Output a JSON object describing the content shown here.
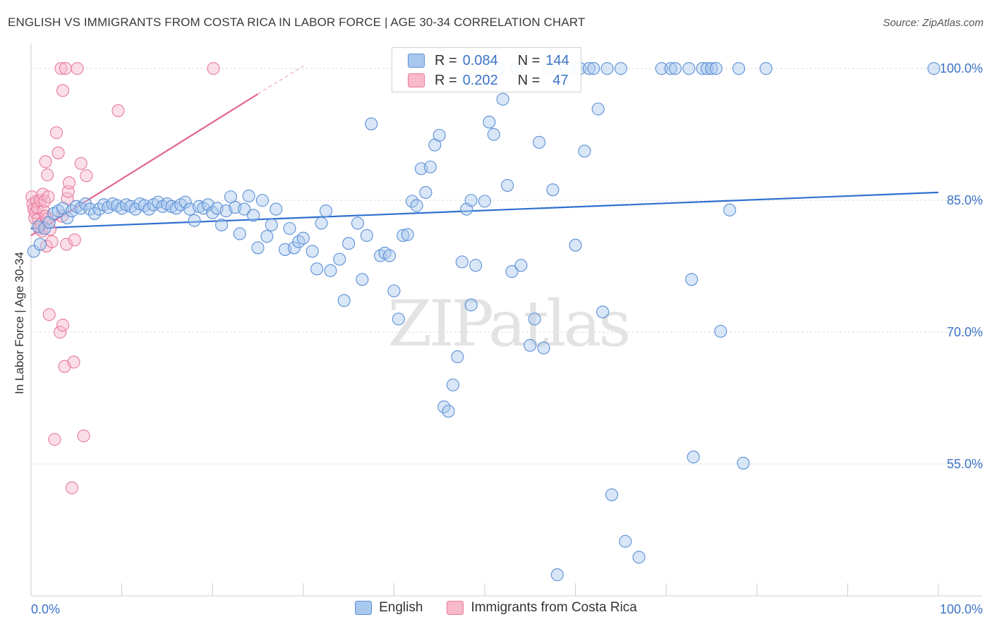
{
  "chart_data": {
    "type": "scatter",
    "title": "ENGLISH VS IMMIGRANTS FROM COSTA RICA IN LABOR FORCE | AGE 30-34 CORRELATION CHART",
    "source": "Source: ZipAtlas.com",
    "xlabel": "",
    "ylabel": "In Labor Force | Age 30-34",
    "xlim": [
      0,
      100
    ],
    "ylim": [
      40,
      102.5
    ],
    "x_tick_labels": [
      "0.0%",
      "100.0%"
    ],
    "y_ticks": [
      55,
      70,
      85,
      100
    ],
    "y_tick_labels": [
      "55.0%",
      "70.0%",
      "85.0%",
      "100.0%"
    ],
    "watermark": "ZIPatlas",
    "colors": {
      "english_fill": "#a9c8ee",
      "english_stroke": "#5b8fd6",
      "english_line": "#2f6fd0",
      "costa_fill": "#f7b9cb",
      "costa_stroke": "#e8799b",
      "costa_line": "#e06592",
      "tick_label": "#3b73c6",
      "grid": "#d9d9d9"
    },
    "legend": [
      {
        "r_label": "R =",
        "r_value": "0.084",
        "n_label": "N =",
        "n_value": "144"
      },
      {
        "r_label": "R =",
        "r_value": "0.202",
        "n_label": "N =",
        "n_value": "47"
      }
    ],
    "series": [
      {
        "name": "English",
        "trend": {
          "x": [
            0,
            100
          ],
          "y": [
            81.8,
            85.9
          ]
        },
        "points": [
          [
            0.3,
            79.2
          ],
          [
            0.8,
            82.0
          ],
          [
            1.0,
            80.0
          ],
          [
            1.5,
            81.8
          ],
          [
            2.0,
            82.5
          ],
          [
            2.5,
            83.5
          ],
          [
            3.0,
            83.8
          ],
          [
            3.5,
            84.1
          ],
          [
            4.0,
            83.0
          ],
          [
            4.5,
            83.8
          ],
          [
            5.0,
            84.3
          ],
          [
            5.5,
            84.1
          ],
          [
            6.0,
            84.6
          ],
          [
            6.5,
            84.0
          ],
          [
            7.0,
            83.5
          ],
          [
            7.5,
            84.0
          ],
          [
            8.0,
            84.5
          ],
          [
            8.5,
            84.2
          ],
          [
            9.0,
            84.6
          ],
          [
            9.5,
            84.4
          ],
          [
            10.0,
            84.1
          ],
          [
            10.5,
            84.5
          ],
          [
            11.0,
            84.3
          ],
          [
            11.5,
            84.0
          ],
          [
            12.0,
            84.6
          ],
          [
            12.5,
            84.4
          ],
          [
            13.0,
            84.0
          ],
          [
            13.5,
            84.5
          ],
          [
            14.0,
            84.8
          ],
          [
            14.5,
            84.3
          ],
          [
            15.0,
            84.6
          ],
          [
            15.5,
            84.3
          ],
          [
            16.0,
            84.1
          ],
          [
            16.5,
            84.5
          ],
          [
            17.0,
            84.8
          ],
          [
            17.5,
            84.0
          ],
          [
            18.0,
            82.7
          ],
          [
            18.5,
            84.3
          ],
          [
            19.0,
            84.1
          ],
          [
            19.5,
            84.5
          ],
          [
            20.0,
            83.6
          ],
          [
            20.5,
            84.1
          ],
          [
            21.0,
            82.2
          ],
          [
            21.5,
            83.8
          ],
          [
            22.0,
            85.4
          ],
          [
            22.5,
            84.2
          ],
          [
            23.0,
            81.2
          ],
          [
            23.5,
            84.0
          ],
          [
            24.0,
            85.5
          ],
          [
            24.5,
            83.3
          ],
          [
            25.0,
            79.6
          ],
          [
            25.5,
            85.0
          ],
          [
            26.0,
            80.9
          ],
          [
            26.5,
            82.2
          ],
          [
            27.0,
            84.0
          ],
          [
            28.0,
            79.4
          ],
          [
            28.5,
            81.8
          ],
          [
            29.0,
            79.6
          ],
          [
            29.5,
            80.3
          ],
          [
            30.0,
            80.7
          ],
          [
            31.0,
            79.2
          ],
          [
            31.5,
            77.2
          ],
          [
            32.0,
            82.4
          ],
          [
            32.5,
            83.8
          ],
          [
            33.0,
            77.0
          ],
          [
            34.0,
            78.3
          ],
          [
            34.5,
            73.6
          ],
          [
            35.0,
            80.1
          ],
          [
            36.0,
            82.4
          ],
          [
            36.5,
            76.0
          ],
          [
            37.0,
            81.0
          ],
          [
            37.5,
            93.7
          ],
          [
            38.5,
            78.7
          ],
          [
            39.0,
            79.0
          ],
          [
            39.5,
            78.7
          ],
          [
            40.0,
            74.7
          ],
          [
            40.5,
            71.5
          ],
          [
            41.0,
            81.0
          ],
          [
            41.5,
            81.1
          ],
          [
            42.0,
            84.9
          ],
          [
            42.5,
            84.4
          ],
          [
            43.0,
            88.6
          ],
          [
            43.5,
            85.9
          ],
          [
            44.0,
            88.8
          ],
          [
            44.5,
            91.3
          ],
          [
            45.0,
            92.4
          ],
          [
            45.5,
            61.5
          ],
          [
            46.0,
            61.0
          ],
          [
            46.5,
            64.0
          ],
          [
            47.0,
            67.2
          ],
          [
            47.5,
            78.0
          ],
          [
            48.0,
            84.0
          ],
          [
            48.5,
            85.0
          ],
          [
            49.0,
            77.6
          ],
          [
            50.0,
            84.9
          ],
          [
            50.5,
            93.9
          ],
          [
            51.0,
            92.5
          ],
          [
            51.5,
            100
          ],
          [
            52.0,
            96.5
          ],
          [
            52.5,
            86.7
          ],
          [
            53.0,
            76.9
          ],
          [
            53.5,
            100
          ],
          [
            54.0,
            77.6
          ],
          [
            55.0,
            68.5
          ],
          [
            55.5,
            71.5
          ],
          [
            56.0,
            91.6
          ],
          [
            56.5,
            68.2
          ],
          [
            57.0,
            100
          ],
          [
            57.5,
            86.2
          ],
          [
            59.0,
            100
          ],
          [
            60.0,
            79.9
          ],
          [
            60.5,
            100
          ],
          [
            61.0,
            90.6
          ],
          [
            61.5,
            100
          ],
          [
            62.0,
            100
          ],
          [
            62.5,
            95.4
          ],
          [
            63.0,
            72.3
          ],
          [
            63.5,
            100
          ],
          [
            64.0,
            51.5
          ],
          [
            65.0,
            100
          ],
          [
            65.5,
            46.2
          ],
          [
            67.0,
            44.4
          ],
          [
            69.5,
            100
          ],
          [
            70.5,
            100
          ],
          [
            71.0,
            100
          ],
          [
            72.5,
            100
          ],
          [
            72.8,
            76.0
          ],
          [
            73.0,
            55.8
          ],
          [
            74.0,
            100
          ],
          [
            74.5,
            100
          ],
          [
            75.0,
            100
          ],
          [
            75.5,
            100
          ],
          [
            76.0,
            70.1
          ],
          [
            77.0,
            83.9
          ],
          [
            78.0,
            100
          ],
          [
            78.5,
            55.1
          ],
          [
            81.0,
            100
          ],
          [
            58.0,
            42.4
          ],
          [
            99.5,
            100
          ],
          [
            48.5,
            73.1
          ]
        ]
      },
      {
        "name": "Immigrants from Costa Rica",
        "trend": {
          "x": [
            0,
            25
          ],
          "y": [
            81.0,
            97.1
          ]
        },
        "trend_dashed": {
          "x": [
            25,
            30
          ],
          "y": [
            97.1,
            100.3
          ]
        },
        "points": [
          [
            0.1,
            85.4
          ],
          [
            0.2,
            84.6
          ],
          [
            0.3,
            84.0
          ],
          [
            0.4,
            83.0
          ],
          [
            0.5,
            83.6
          ],
          [
            0.6,
            84.9
          ],
          [
            0.7,
            84.1
          ],
          [
            0.8,
            82.9
          ],
          [
            0.9,
            81.8
          ],
          [
            1.0,
            85.0
          ],
          [
            1.1,
            82.3
          ],
          [
            1.2,
            81.5
          ],
          [
            1.3,
            85.7
          ],
          [
            1.4,
            83.8
          ],
          [
            1.5,
            84.9
          ],
          [
            1.6,
            83.2
          ],
          [
            1.7,
            79.8
          ],
          [
            1.8,
            82.9
          ],
          [
            1.9,
            85.4
          ],
          [
            2.0,
            72.0
          ],
          [
            2.1,
            81.7
          ],
          [
            2.3,
            80.3
          ],
          [
            2.6,
            57.8
          ],
          [
            2.8,
            92.7
          ],
          [
            3.0,
            90.4
          ],
          [
            3.2,
            70.0
          ],
          [
            3.4,
            83.2
          ],
          [
            3.5,
            70.8
          ],
          [
            3.7,
            66.1
          ],
          [
            3.9,
            80.0
          ],
          [
            4.0,
            85.2
          ],
          [
            4.1,
            86.0
          ],
          [
            4.2,
            87.0
          ],
          [
            4.5,
            52.3
          ],
          [
            4.7,
            66.6
          ],
          [
            4.8,
            80.5
          ],
          [
            5.5,
            89.2
          ],
          [
            5.8,
            58.2
          ],
          [
            6.1,
            87.8
          ],
          [
            1.6,
            89.4
          ],
          [
            1.8,
            87.9
          ],
          [
            3.5,
            97.5
          ],
          [
            3.3,
            100
          ],
          [
            3.8,
            100
          ],
          [
            5.1,
            100
          ],
          [
            9.6,
            95.2
          ],
          [
            20.1,
            100
          ]
        ]
      }
    ]
  }
}
